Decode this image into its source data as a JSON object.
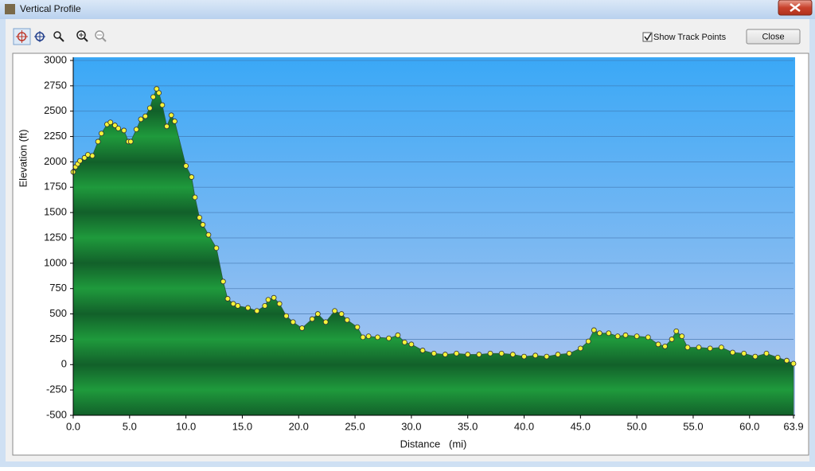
{
  "window": {
    "title": "Vertical Profile",
    "close_button": "Close",
    "show_track_points": {
      "label": "Show Track Points",
      "checked": true
    }
  },
  "chart_data": {
    "type": "area",
    "xlabel": "Distance   (mi)",
    "ylabel": "Elevation (ft)",
    "x": [
      0.0,
      0.2,
      0.4,
      0.6,
      1.0,
      1.3,
      1.7,
      2.2,
      2.5,
      3.0,
      3.3,
      3.7,
      4.0,
      4.5,
      4.9,
      5.1,
      5.6,
      6.0,
      6.4,
      6.8,
      7.1,
      7.4,
      7.6,
      7.9,
      8.3,
      8.7,
      9.0,
      10.0,
      10.5,
      10.8,
      11.2,
      11.5,
      12.0,
      12.7,
      13.3,
      13.7,
      14.2,
      14.6,
      15.5,
      16.3,
      17.0,
      17.3,
      17.8,
      18.3,
      18.9,
      19.5,
      20.3,
      21.2,
      21.7,
      22.4,
      23.2,
      23.8,
      24.3,
      25.2,
      25.7,
      26.2,
      27.0,
      28.0,
      28.8,
      29.4,
      30.0,
      31.0,
      32.0,
      33.0,
      34.0,
      35.0,
      36.0,
      37.0,
      38.0,
      39.0,
      40.0,
      41.0,
      42.0,
      43.0,
      44.0,
      45.0,
      45.7,
      46.2,
      46.7,
      47.5,
      48.3,
      49.0,
      50.0,
      51.0,
      51.9,
      52.5,
      53.1,
      53.5,
      54.0,
      54.5,
      55.5,
      56.5,
      57.5,
      58.5,
      59.5,
      60.5,
      61.5,
      62.5,
      63.3,
      63.9
    ],
    "values": [
      1900,
      1950,
      1980,
      2010,
      2040,
      2070,
      2060,
      2200,
      2280,
      2370,
      2390,
      2360,
      2330,
      2310,
      2200,
      2200,
      2320,
      2420,
      2450,
      2530,
      2640,
      2720,
      2680,
      2560,
      2350,
      2460,
      2400,
      1960,
      1850,
      1650,
      1450,
      1380,
      1280,
      1150,
      820,
      650,
      600,
      580,
      560,
      530,
      580,
      640,
      660,
      600,
      480,
      420,
      360,
      450,
      500,
      420,
      530,
      500,
      440,
      370,
      270,
      280,
      270,
      260,
      290,
      220,
      200,
      140,
      110,
      100,
      110,
      100,
      100,
      110,
      110,
      100,
      80,
      90,
      80,
      100,
      110,
      160,
      230,
      340,
      310,
      310,
      280,
      290,
      280,
      270,
      200,
      180,
      250,
      330,
      280,
      170,
      170,
      160,
      170,
      120,
      110,
      80,
      110,
      70,
      40,
      10
    ],
    "color": "#1f9a3c",
    "point_color": "#f4f43a",
    "background_color": "#3aa8f6",
    "xlim": [
      0,
      63.9
    ],
    "ylim": [
      -500,
      3000
    ],
    "xticks": [
      {
        "value": 0,
        "label": "0.0"
      },
      {
        "value": 5,
        "label": "5.0"
      },
      {
        "value": 10,
        "label": "10.0"
      },
      {
        "value": 15,
        "label": "15.0"
      },
      {
        "value": 20,
        "label": "20.0"
      },
      {
        "value": 25,
        "label": "25.0"
      },
      {
        "value": 30,
        "label": "30.0"
      },
      {
        "value": 35,
        "label": "35.0"
      },
      {
        "value": 40,
        "label": "40.0"
      },
      {
        "value": 45,
        "label": "45.0"
      },
      {
        "value": 50,
        "label": "50.0"
      },
      {
        "value": 55,
        "label": "55.0"
      },
      {
        "value": 60,
        "label": "60.0"
      },
      63.9
    ],
    "yticks": [
      -500,
      -250,
      0,
      250,
      500,
      750,
      1000,
      1250,
      1500,
      1750,
      2000,
      2250,
      2500,
      2750,
      3000
    ],
    "grid": true
  }
}
